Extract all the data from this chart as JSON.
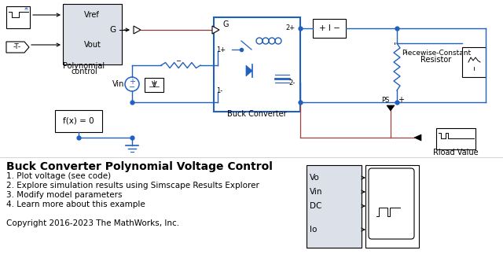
{
  "title": "Buck Converter Polynomial Voltage Control",
  "items": [
    "1. Plot voltage (see code)",
    "2. Explore simulation results using Simscape Results Explorer",
    "3. Modify model parameters",
    "4. Learn more about this example"
  ],
  "copyright": "Copyright 2016-2023 The MathWorks, Inc.",
  "bg_color": "#ffffff",
  "blue": "#2060c0",
  "black": "#000000",
  "gray_light": "#dce0e8",
  "red": "#a04040"
}
